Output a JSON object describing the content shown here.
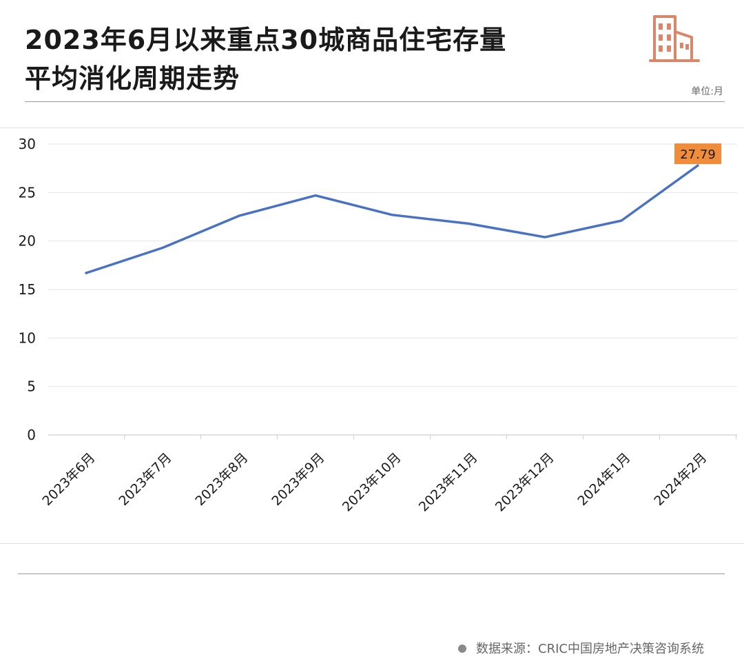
{
  "header": {
    "title_line1": "2023年6月以来重点30城商品住宅存量",
    "title_line2": "平均消化周期走势",
    "unit": "单位:月"
  },
  "icons": {
    "logo": "building-icon"
  },
  "footer": {
    "source": "数据来源：CRIC中国房地产决策咨询系统"
  },
  "colors": {
    "line": "#4a72c2",
    "label_bg": "#f08c3a",
    "logo": "#d9866b",
    "grid": "#e6e6e6"
  },
  "chart_data": {
    "type": "line",
    "title": "2023年6月以来重点30城商品住宅存量平均消化周期走势",
    "xlabel": "",
    "ylabel": "",
    "unit": "月",
    "categories": [
      "2023年6月",
      "2023年7月",
      "2023年8月",
      "2023年9月",
      "2023年10月",
      "2023年11月",
      "2023年12月",
      "2024年1月",
      "2024年2月"
    ],
    "series": [
      {
        "values": [
          16.7,
          19.3,
          22.6,
          24.7,
          22.7,
          21.8,
          20.4,
          22.1,
          27.79
        ]
      }
    ],
    "data_labels": [
      {
        "index": 8,
        "text": "27.79"
      }
    ],
    "ylim": [
      0,
      30
    ],
    "yticks": [
      0,
      5,
      10,
      15,
      20,
      25,
      30
    ],
    "grid": true,
    "legend": "none"
  }
}
